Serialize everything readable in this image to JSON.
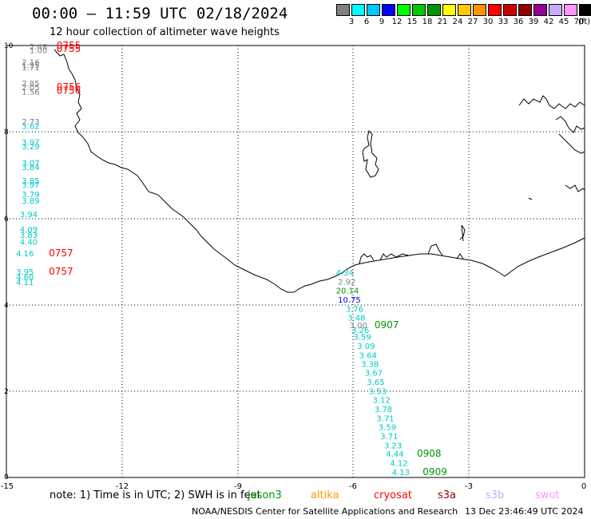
{
  "title": "00:00 — 11:59 UTC 02/18/2024",
  "subtitle": "12 hour collection of altimeter wave heights",
  "legend": {
    "labels": [
      "3",
      "6",
      "9",
      "12",
      "15",
      "18",
      "21",
      "24",
      "27",
      "30",
      "33",
      "36",
      "39",
      "42",
      "45",
      "70"
    ],
    "unit": "(ft)",
    "colors": [
      "#808080",
      "#00ffff",
      "#00c8ff",
      "#0000ff",
      "#00ff00",
      "#00c800",
      "#009600",
      "#ffff00",
      "#ffc800",
      "#ff9600",
      "#ff0000",
      "#c80000",
      "#960000",
      "#960096",
      "#c8aaff",
      "#ff96ff",
      "#000000"
    ]
  },
  "axes": {
    "x_ticks": [
      "-15",
      "-12",
      "-9",
      "-6",
      "-3",
      "0"
    ],
    "y_ticks": [
      "0",
      "2",
      "4",
      "6",
      "8",
      "10"
    ]
  },
  "map_data": {
    "lon_range": [
      -15,
      0
    ],
    "lat_range": [
      0,
      10
    ],
    "wave_labels": [
      {
        "text": "2.48",
        "lon": -14.4,
        "lat": 9.98,
        "color": "#808080"
      },
      {
        "text": "1.00",
        "lon": -14.4,
        "lat": 9.9,
        "color": "#808080"
      },
      {
        "text": "0755",
        "lon": -13.7,
        "lat": 10.0,
        "color": "#ff0000"
      },
      {
        "text": "0755",
        "lon": -13.7,
        "lat": 9.93,
        "color": "#ff0000"
      },
      {
        "text": "2.16",
        "lon": -14.6,
        "lat": 9.62,
        "color": "#808080"
      },
      {
        "text": "1.95",
        "lon": -14.6,
        "lat": 9.56,
        "color": "#808080"
      },
      {
        "text": "1.71",
        "lon": -14.6,
        "lat": 9.5,
        "color": "#808080"
      },
      {
        "text": "2.85",
        "lon": -14.6,
        "lat": 9.13,
        "color": "#808080"
      },
      {
        "text": "2.05",
        "lon": -14.6,
        "lat": 9.04,
        "color": "#808080"
      },
      {
        "text": "1.56",
        "lon": -14.6,
        "lat": 8.94,
        "color": "#808080"
      },
      {
        "text": "0756",
        "lon": -13.7,
        "lat": 9.04,
        "color": "#ff0000"
      },
      {
        "text": "0756",
        "lon": -13.7,
        "lat": 8.96,
        "color": "#ff0000"
      },
      {
        "text": "2.73",
        "lon": -14.6,
        "lat": 8.24,
        "color": "#808080"
      },
      {
        "text": "3.62",
        "lon": -14.6,
        "lat": 8.14,
        "color": "#00c8c8"
      },
      {
        "text": "3.97",
        "lon": -14.6,
        "lat": 7.77,
        "color": "#00c8c8"
      },
      {
        "text": "3.29",
        "lon": -14.6,
        "lat": 7.67,
        "color": "#00c8c8"
      },
      {
        "text": "3.07",
        "lon": -14.6,
        "lat": 7.29,
        "color": "#00c8c8"
      },
      {
        "text": "3.84",
        "lon": -14.6,
        "lat": 7.19,
        "color": "#00c8c8"
      },
      {
        "text": "3.85",
        "lon": -14.6,
        "lat": 6.88,
        "color": "#00c8c8"
      },
      {
        "text": "3.97",
        "lon": -14.6,
        "lat": 6.78,
        "color": "#00c8c8"
      },
      {
        "text": "3.79",
        "lon": -14.6,
        "lat": 6.56,
        "color": "#00c8c8"
      },
      {
        "text": "3.89",
        "lon": -14.6,
        "lat": 6.41,
        "color": "#00c8c8"
      },
      {
        "text": "3.94",
        "lon": -14.65,
        "lat": 6.1,
        "color": "#00c8c8"
      },
      {
        "text": "4.09",
        "lon": -14.65,
        "lat": 5.75,
        "color": "#00c8c8"
      },
      {
        "text": "3.83",
        "lon": -14.65,
        "lat": 5.62,
        "color": "#00c8c8"
      },
      {
        "text": "4.40",
        "lon": -14.65,
        "lat": 5.46,
        "color": "#00c8c8"
      },
      {
        "text": "4.16",
        "lon": -14.75,
        "lat": 5.19,
        "color": "#00c8c8"
      },
      {
        "text": "0757",
        "lon": -13.9,
        "lat": 5.19,
        "color": "#ff0000"
      },
      {
        "text": "3.95",
        "lon": -14.75,
        "lat": 4.77,
        "color": "#00c8c8"
      },
      {
        "text": "4.60",
        "lon": -14.75,
        "lat": 4.65,
        "color": "#00c8c8"
      },
      {
        "text": "4.11",
        "lon": -14.75,
        "lat": 4.53,
        "color": "#00c8c8"
      },
      {
        "text": "0757",
        "lon": -13.9,
        "lat": 4.77,
        "color": "#ff0000"
      },
      {
        "text": "4.34",
        "lon": -6.45,
        "lat": 4.75,
        "color": "#00c8c8"
      },
      {
        "text": "2.92",
        "lon": -6.4,
        "lat": 4.54,
        "color": "#808080"
      },
      {
        "text": "20.14",
        "lon": -6.45,
        "lat": 4.33,
        "color": "#009600"
      },
      {
        "text": "10.75",
        "lon": -6.4,
        "lat": 4.12,
        "color": "#0000ff"
      },
      {
        "text": "3.76",
        "lon": -6.2,
        "lat": 3.91,
        "color": "#00c8c8"
      },
      {
        "text": "3.48",
        "lon": -6.15,
        "lat": 3.71,
        "color": "#00c8c8"
      },
      {
        "text": "3.00",
        "lon": -6.1,
        "lat": 3.53,
        "color": "#808080"
      },
      {
        "text": "3.26",
        "lon": -6.05,
        "lat": 3.42,
        "color": "#00c8c8"
      },
      {
        "text": "0907",
        "lon": -5.45,
        "lat": 3.53,
        "color": "#009600"
      },
      {
        "text": "3.59",
        "lon": -6.0,
        "lat": 3.26,
        "color": "#00c8c8"
      },
      {
        "text": "3.09",
        "lon": -5.9,
        "lat": 3.05,
        "color": "#00c8c8"
      },
      {
        "text": "3.64",
        "lon": -5.85,
        "lat": 2.84,
        "color": "#00c8c8"
      },
      {
        "text": "3.38",
        "lon": -5.8,
        "lat": 2.63,
        "color": "#00c8c8"
      },
      {
        "text": "3.67",
        "lon": -5.7,
        "lat": 2.43,
        "color": "#00c8c8"
      },
      {
        "text": "3.65",
        "lon": -5.65,
        "lat": 2.22,
        "color": "#00c8c8"
      },
      {
        "text": "3.53",
        "lon": -5.6,
        "lat": 2.01,
        "color": "#00c8c8"
      },
      {
        "text": "3.12",
        "lon": -5.5,
        "lat": 1.8,
        "color": "#00c8c8"
      },
      {
        "text": "3.78",
        "lon": -5.45,
        "lat": 1.59,
        "color": "#00c8c8"
      },
      {
        "text": "3.71",
        "lon": -5.4,
        "lat": 1.38,
        "color": "#00c8c8"
      },
      {
        "text": "3.59",
        "lon": -5.35,
        "lat": 1.17,
        "color": "#00c8c8"
      },
      {
        "text": "3.71",
        "lon": -5.3,
        "lat": 0.96,
        "color": "#00c8c8"
      },
      {
        "text": "3.23",
        "lon": -5.2,
        "lat": 0.75,
        "color": "#00c8c8"
      },
      {
        "text": "0908",
        "lon": -4.35,
        "lat": 0.55,
        "color": "#009600"
      },
      {
        "text": "4.44",
        "lon": -5.15,
        "lat": 0.55,
        "color": "#00c8c8"
      },
      {
        "text": "4.12",
        "lon": -5.05,
        "lat": 0.34,
        "color": "#00c8c8"
      },
      {
        "text": "4.13",
        "lon": -5.0,
        "lat": 0.13,
        "color": "#00c8c8"
      },
      {
        "text": "0909",
        "lon": -4.2,
        "lat": 0.13,
        "color": "#009600"
      }
    ]
  },
  "note": "note:  1) Time is in UTC; 2) SWH is in feet",
  "satellites": [
    {
      "name": "jason3",
      "color": "#009600"
    },
    {
      "name": "altika",
      "color": "#ff9600"
    },
    {
      "name": "cryosat",
      "color": "#ff0000"
    },
    {
      "name": "s3a",
      "color": "#960000"
    },
    {
      "name": "s3b",
      "color": "#c8aaff"
    },
    {
      "name": "swot",
      "color": "#ff96ff"
    }
  ],
  "credit": "NOAA/NESDIS Center for Satellite Applications and Research",
  "stamp": "13 Dec 23:46:49 UTC 2024"
}
